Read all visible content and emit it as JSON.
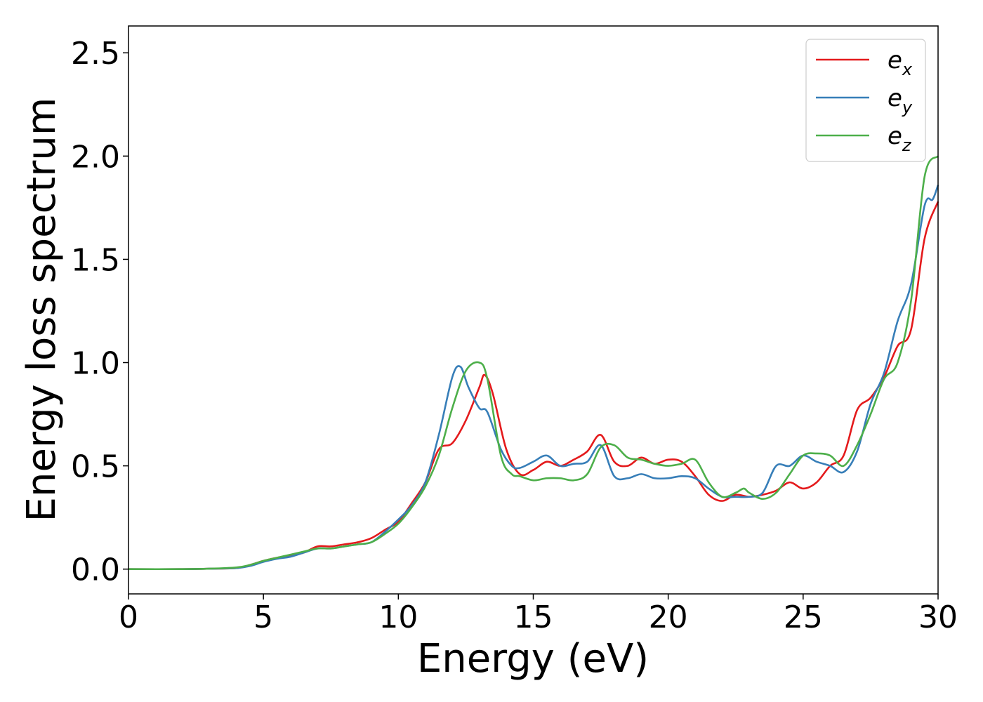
{
  "chart_data": {
    "type": "line",
    "xlabel": "Energy (eV)",
    "ylabel": "Energy loss spectrum",
    "xlim": [
      0,
      30
    ],
    "ylim": [
      -0.12,
      2.63
    ],
    "xticks": [
      "0",
      "5",
      "10",
      "15",
      "20",
      "25",
      "30"
    ],
    "yticks": [
      "0.0",
      "0.5",
      "1.0",
      "1.5",
      "2.0",
      "2.5"
    ],
    "grid": false,
    "legend_position": "top-right",
    "series": [
      {
        "name": "e_x",
        "label_main": "e",
        "label_sub": "x",
        "color": "#e41a1c",
        "x": [
          0,
          2,
          3,
          4,
          4.5,
          5,
          5.5,
          6,
          6.5,
          7,
          7.5,
          8,
          8.5,
          9,
          9.5,
          10,
          10.5,
          11,
          11.5,
          12,
          12.5,
          13,
          13.2,
          13.5,
          14,
          14.5,
          15,
          15.5,
          16,
          16.5,
          17,
          17.5,
          18,
          18.5,
          19,
          19.5,
          20,
          20.5,
          21,
          21.5,
          22,
          22.5,
          23,
          23.5,
          24,
          24.5,
          25,
          25.5,
          26,
          26.5,
          27,
          27.5,
          28,
          28.5,
          29,
          29.5,
          30
        ],
        "y": [
          0,
          0,
          0.002,
          0.005,
          0.02,
          0.04,
          0.055,
          0.065,
          0.08,
          0.11,
          0.11,
          0.12,
          0.13,
          0.15,
          0.19,
          0.23,
          0.32,
          0.42,
          0.58,
          0.61,
          0.72,
          0.88,
          0.94,
          0.85,
          0.58,
          0.46,
          0.48,
          0.52,
          0.5,
          0.53,
          0.57,
          0.65,
          0.52,
          0.5,
          0.54,
          0.51,
          0.53,
          0.52,
          0.45,
          0.36,
          0.33,
          0.36,
          0.35,
          0.36,
          0.38,
          0.42,
          0.39,
          0.42,
          0.5,
          0.55,
          0.77,
          0.83,
          0.93,
          1.08,
          1.16,
          1.6,
          1.78
        ]
      },
      {
        "name": "e_y",
        "label_main": "e",
        "label_sub": "y",
        "color": "#377eb8",
        "x": [
          0,
          2,
          3,
          4,
          4.5,
          5,
          5.5,
          6,
          6.5,
          7,
          7.5,
          8,
          8.5,
          9,
          9.5,
          10,
          10.5,
          11,
          11.5,
          12,
          12.3,
          12.6,
          13,
          13.3,
          13.8,
          14.2,
          14.5,
          15,
          15.5,
          16,
          16.5,
          17,
          17.5,
          18,
          18.5,
          19,
          19.5,
          20,
          20.5,
          21,
          21.5,
          22,
          22.5,
          23,
          23.5,
          24,
          24.5,
          25,
          25.5,
          26,
          26.5,
          27,
          27.5,
          28,
          28.5,
          29,
          29.5,
          29.8,
          30
        ],
        "y": [
          0,
          0,
          0.002,
          0.005,
          0.015,
          0.035,
          0.05,
          0.06,
          0.08,
          0.1,
          0.1,
          0.11,
          0.12,
          0.13,
          0.18,
          0.24,
          0.31,
          0.42,
          0.65,
          0.93,
          0.98,
          0.88,
          0.78,
          0.76,
          0.58,
          0.5,
          0.49,
          0.52,
          0.55,
          0.5,
          0.51,
          0.52,
          0.6,
          0.45,
          0.44,
          0.46,
          0.44,
          0.44,
          0.45,
          0.44,
          0.39,
          0.35,
          0.35,
          0.35,
          0.37,
          0.5,
          0.5,
          0.55,
          0.52,
          0.5,
          0.47,
          0.57,
          0.8,
          0.95,
          1.2,
          1.38,
          1.76,
          1.79,
          1.86
        ]
      },
      {
        "name": "e_z",
        "label_main": "e",
        "label_sub": "z",
        "color": "#4daf4a",
        "x": [
          0,
          2,
          3,
          4,
          4.5,
          5,
          5.5,
          6,
          6.5,
          7,
          7.5,
          8,
          8.5,
          9,
          9.5,
          10,
          10.5,
          11,
          11.5,
          12,
          12.5,
          13,
          13.3,
          13.8,
          14.2,
          14.5,
          15,
          15.5,
          16,
          16.5,
          17,
          17.5,
          18,
          18.5,
          19,
          19.5,
          20,
          20.5,
          21,
          21.5,
          22,
          22.5,
          22.8,
          23,
          23.5,
          24,
          24.5,
          25,
          25.5,
          26,
          26.5,
          27,
          27.5,
          28,
          28.5,
          29,
          29.5,
          30
        ],
        "y": [
          0,
          0,
          0.002,
          0.008,
          0.02,
          0.04,
          0.055,
          0.07,
          0.085,
          0.1,
          0.1,
          0.11,
          0.12,
          0.13,
          0.17,
          0.22,
          0.3,
          0.4,
          0.55,
          0.78,
          0.96,
          1.0,
          0.92,
          0.55,
          0.46,
          0.45,
          0.43,
          0.44,
          0.44,
          0.43,
          0.46,
          0.59,
          0.6,
          0.54,
          0.53,
          0.51,
          0.5,
          0.51,
          0.53,
          0.42,
          0.35,
          0.37,
          0.39,
          0.37,
          0.34,
          0.37,
          0.46,
          0.55,
          0.56,
          0.55,
          0.5,
          0.6,
          0.75,
          0.92,
          1.0,
          1.3,
          1.9,
          2.0
        ]
      }
    ]
  }
}
